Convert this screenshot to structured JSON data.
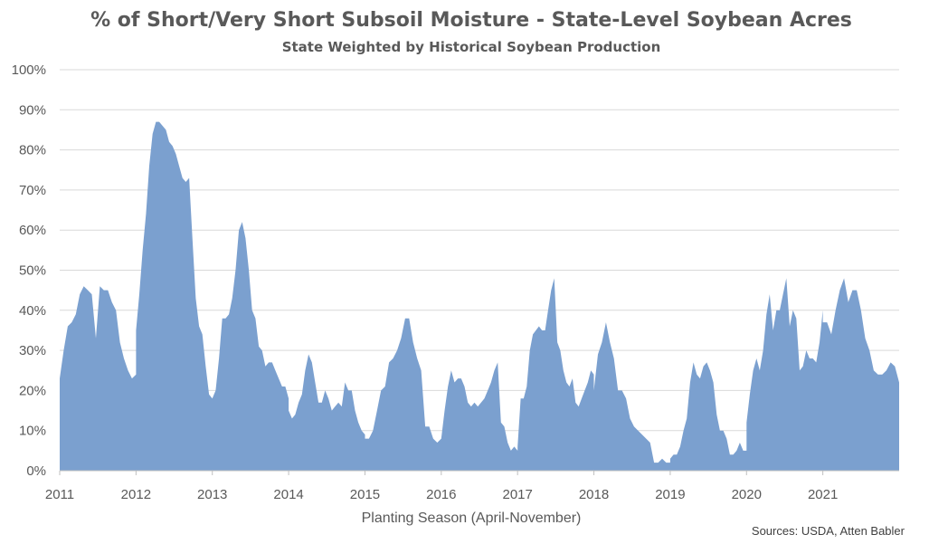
{
  "chart_data": {
    "type": "area",
    "title": "% of Short/Very Short Subsoil Moisture - State-Level Soybean Acres",
    "subtitle": "State Weighted by Historical Soybean Production",
    "xlabel": "Planting Season (April-November)",
    "ylabel": "",
    "source": "Sources: USDA, Atten Babler",
    "color": "#7ba0cf",
    "grid": true,
    "legend": "none",
    "ylim": [
      0,
      100
    ],
    "y_ticks": [
      0,
      10,
      20,
      30,
      40,
      50,
      60,
      70,
      80,
      90,
      100
    ],
    "y_tick_labels": [
      "0%",
      "10%",
      "20%",
      "30%",
      "40%",
      "50%",
      "60%",
      "70%",
      "80%",
      "90%",
      "100%"
    ],
    "x_tick_labels": [
      "2011",
      "2012",
      "2013",
      "2014",
      "2015",
      "2016",
      "2017",
      "2018",
      "2019",
      "2020",
      "2021"
    ],
    "series": [
      {
        "name": "",
        "seasons": [
          {
            "label": "2011",
            "values": [
              23,
              30,
              36,
              37,
              39,
              44,
              46,
              45,
              44,
              33,
              46,
              45,
              45,
              42,
              40,
              32,
              28,
              25,
              23,
              24
            ]
          },
          {
            "label": "2012",
            "values": [
              35,
              44,
              55,
              64,
              76,
              84,
              87,
              87,
              86,
              85,
              82,
              81,
              79,
              76,
              73,
              72,
              73,
              58,
              43,
              36,
              34,
              26,
              19,
              18
            ]
          },
          {
            "label": "2013",
            "values": [
              18,
              20,
              28,
              38,
              38,
              39,
              43,
              50,
              60,
              62,
              58,
              50,
              40,
              38,
              31,
              30,
              26,
              27,
              27,
              25,
              23,
              21,
              21,
              18
            ]
          },
          {
            "label": "2014",
            "values": [
              15,
              13,
              14,
              17,
              19,
              25,
              29,
              27,
              22,
              17,
              17,
              20,
              18,
              15,
              16,
              17,
              16,
              22,
              20,
              20,
              15,
              12,
              10,
              9
            ]
          },
          {
            "label": "2015",
            "values": [
              8,
              8,
              10,
              15,
              20,
              21,
              27,
              28,
              30,
              33,
              38,
              38,
              32,
              28,
              25,
              11,
              11,
              8,
              7,
              8
            ]
          },
          {
            "label": "2016",
            "values": [
              8,
              15,
              21,
              25,
              22,
              23,
              23,
              21,
              17,
              16,
              17,
              16,
              17,
              18,
              20,
              22,
              25,
              27,
              12,
              11,
              7,
              5,
              6,
              5
            ]
          },
          {
            "label": "2017",
            "values": [
              6,
              18,
              18,
              21,
              30,
              34,
              35,
              36,
              35,
              35,
              40,
              45,
              48,
              32,
              30,
              25,
              22,
              21,
              23,
              17,
              16,
              18,
              20,
              22,
              25,
              24
            ]
          },
          {
            "label": "2018",
            "values": [
              20,
              29,
              32,
              37,
              32,
              28,
              20,
              20,
              18,
              13,
              11,
              10,
              9,
              8,
              7,
              2,
              2,
              3,
              2,
              2
            ]
          },
          {
            "label": "2019",
            "values": [
              3,
              4,
              4,
              6,
              10,
              13,
              22,
              27,
              24,
              23,
              26,
              27,
              25,
              22,
              14,
              10,
              10,
              8,
              4,
              4,
              5,
              7,
              5,
              5
            ]
          },
          {
            "label": "2020",
            "values": [
              12,
              19,
              25,
              28,
              25,
              30,
              39,
              44,
              35,
              40,
              40,
              44,
              48,
              36,
              40,
              38,
              25,
              26,
              30,
              28,
              28,
              27,
              32,
              40
            ]
          },
          {
            "label": "2021",
            "values": [
              37,
              37,
              34,
              40,
              45,
              48,
              42,
              45,
              45,
              40,
              33,
              30,
              25,
              24,
              24,
              25,
              27,
              26,
              22
            ]
          }
        ]
      }
    ]
  }
}
